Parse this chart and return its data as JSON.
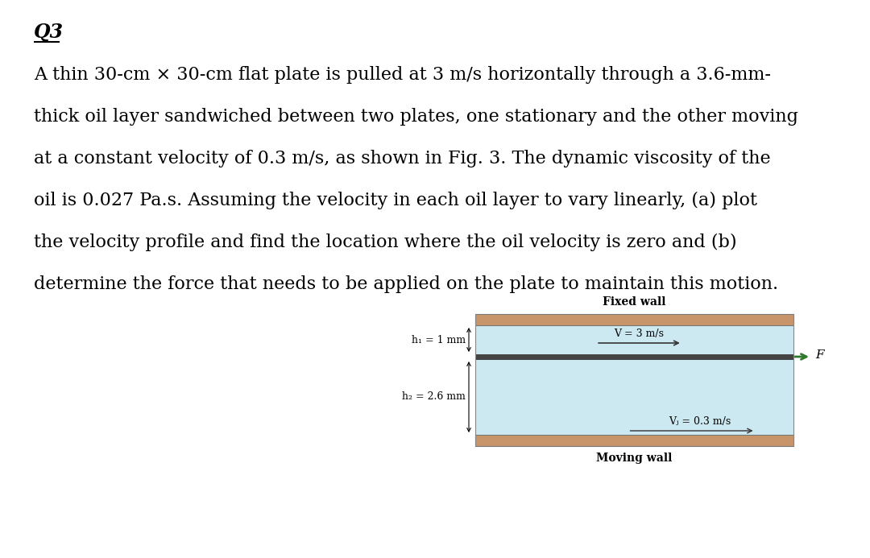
{
  "title": "Q3",
  "paragraph_lines": [
    "A thin 30-cm × 30-cm flat plate is pulled at 3 m/s horizontally through a 3.6-mm-",
    "thick oil layer sandwiched between two plates, one stationary and the other moving",
    "at a constant velocity of 0.3 m/s, as shown in Fig. 3. The dynamic viscosity of the",
    "oil is 0.027 Pa.s. Assuming the velocity in each oil layer to vary linearly, (a) plot",
    "the velocity profile and find the location where the oil velocity is zero and (b)",
    "determine the force that needs to be applied on the plate to maintain this motion."
  ],
  "diagram": {
    "fixed_wall_label": "Fixed wall",
    "moving_wall_label": "Moving wall",
    "h1_label": "h₁ = 1 mm",
    "h2_label": "h₂ = 2.6 mm",
    "V_label": "V = 3 m/s",
    "Vs_label": "Vⱼ = 0.3 m/s",
    "F_label": "F",
    "wall_color": "#c8956a",
    "fluid_color": "#cce8f0",
    "plate_color": "#444444",
    "arrow_color_green": "#2d7a2d",
    "arrow_color_dark": "#333333"
  },
  "background_color": "#ffffff",
  "text_color": "#000000",
  "font_size_title": 17,
  "font_size_body": 16,
  "font_size_diagram_label": 9,
  "font_size_diagram_text": 9
}
